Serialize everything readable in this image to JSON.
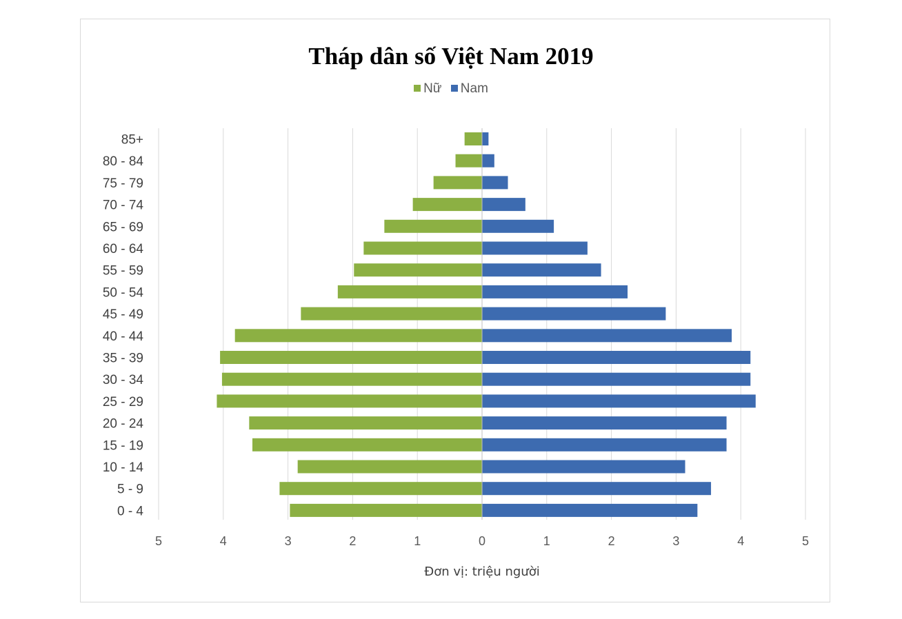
{
  "chart_data": {
    "type": "bar",
    "orientation": "horizontal",
    "title": "Tháp dân số Việt Nam 2019",
    "xlabel": "Đơn vị: triệu người",
    "legend_position": "top",
    "grid": true,
    "xlim": [
      -5,
      5
    ],
    "tick_values": [
      -5,
      -4,
      -3,
      -2,
      -1,
      0,
      1,
      2,
      3,
      4,
      5
    ],
    "tick_labels": [
      "5",
      "4",
      "3",
      "2",
      "1",
      "0",
      "1",
      "2",
      "3",
      "4",
      "5"
    ],
    "categories": [
      "0 - 4",
      "5 - 9",
      "10 - 14",
      "15 - 19",
      "20 - 24",
      "25 - 29",
      "30 - 34",
      "35 - 39",
      "40 - 44",
      "45 - 49",
      "50 - 54",
      "55 - 59",
      "60 - 64",
      "65 - 69",
      "70 - 74",
      "75 - 79",
      "80 - 84",
      "85+"
    ],
    "series": [
      {
        "name": "Nữ",
        "color": "#8cb043",
        "side": "left",
        "values": [
          2.97,
          3.13,
          2.85,
          3.55,
          3.6,
          4.1,
          4.02,
          4.05,
          3.82,
          2.8,
          2.23,
          1.98,
          1.83,
          1.51,
          1.07,
          0.75,
          0.41,
          0.27
        ]
      },
      {
        "name": "Nam",
        "color": "#3d6bb0",
        "side": "right",
        "values": [
          3.33,
          3.54,
          3.14,
          3.78,
          3.78,
          4.23,
          4.15,
          4.15,
          3.86,
          2.84,
          2.25,
          1.84,
          1.63,
          1.11,
          0.67,
          0.4,
          0.19,
          0.1
        ]
      }
    ]
  }
}
